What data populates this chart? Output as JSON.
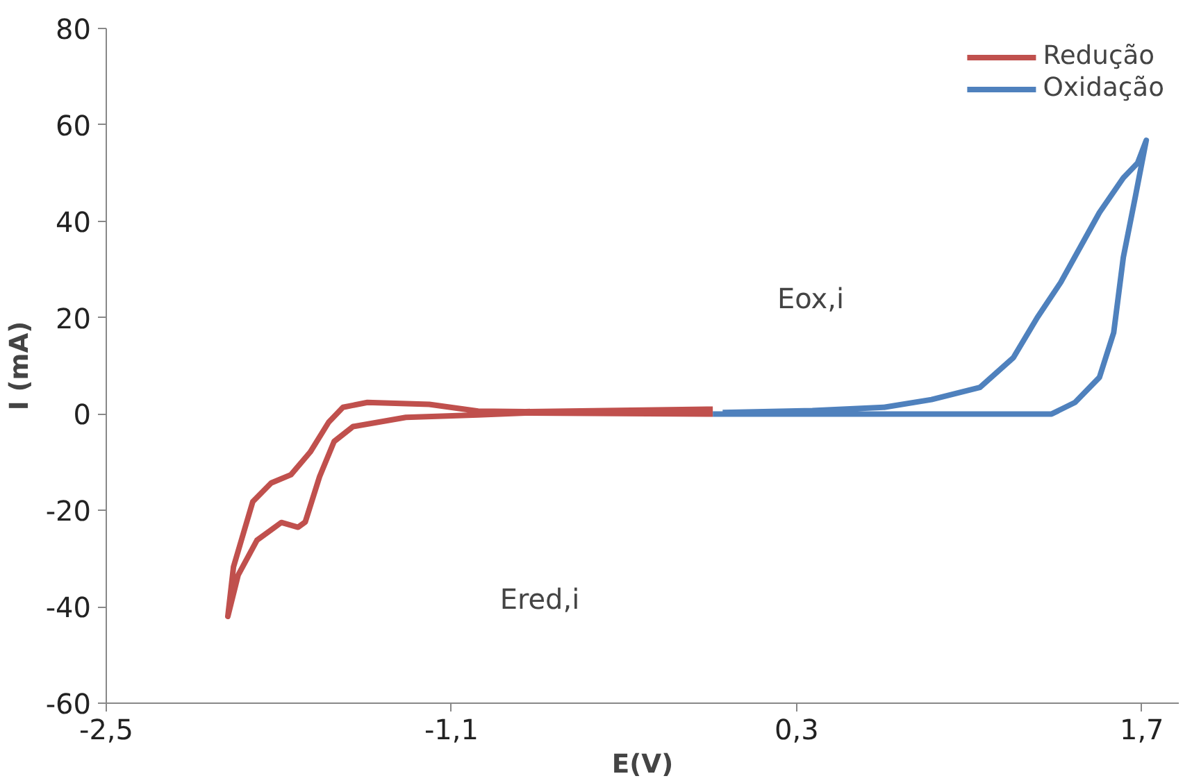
{
  "chart_data": {
    "type": "line",
    "xlabel": "E(V)",
    "ylabel": "I (mA)",
    "xlim": [
      -2.5,
      1.85
    ],
    "xticks": [
      {
        "value": -2.5,
        "label": "-2,5"
      },
      {
        "value": -1.1,
        "label": "-1,1"
      },
      {
        "value": 0.3,
        "label": "0,3"
      },
      {
        "value": 1.7,
        "label": "1,7"
      }
    ],
    "ylim": [
      -60,
      80
    ],
    "yticks": [
      -60,
      -40,
      -20,
      0,
      20,
      40,
      60,
      80
    ],
    "grid": false,
    "legend": "top right",
    "marker": "none",
    "line_style": "solid",
    "annotations": [
      "Eox,i",
      "Ered,i"
    ],
    "series": [
      {
        "name": "Redução",
        "color": "#c0504d",
        "x": [
          -0.04,
          -0.8,
          -0.992,
          -1.285,
          -1.499,
          -1.576,
          -1.635,
          -1.693,
          -1.722,
          -1.79,
          -1.889,
          -1.965,
          -2.007,
          -1.984,
          -1.906,
          -1.831,
          -1.751,
          -1.673,
          -1.598,
          -1.54,
          -1.441,
          -1.19,
          -0.992,
          -0.8,
          -0.04
        ],
        "values": [
          0,
          0.2,
          -0.2,
          -0.7,
          -2.6,
          -5.7,
          -13,
          -22.4,
          -23.5,
          -22.5,
          -26.2,
          -33.4,
          -42,
          -31.7,
          -18.2,
          -14.3,
          -12.6,
          -7.9,
          -1.7,
          1.4,
          2.4,
          2,
          0.6,
          0.5,
          1
        ]
      },
      {
        "name": "Oxidação",
        "color": "#4f81bd",
        "x": [
          -0.04,
          1.334,
          1.429,
          1.528,
          1.586,
          1.625,
          1.673,
          1.718,
          1.683,
          1.625,
          1.528,
          1.45,
          1.371,
          1.276,
          1.179,
          1.043,
          0.847,
          0.655,
          0.364,
          0.0
        ],
        "values": [
          0,
          0,
          2.4,
          7.6,
          16.9,
          32.5,
          44.9,
          56.8,
          52.1,
          49,
          41.8,
          34.6,
          27.3,
          20,
          11.7,
          5.5,
          3,
          1.4,
          0.7,
          0.3
        ]
      }
    ]
  }
}
